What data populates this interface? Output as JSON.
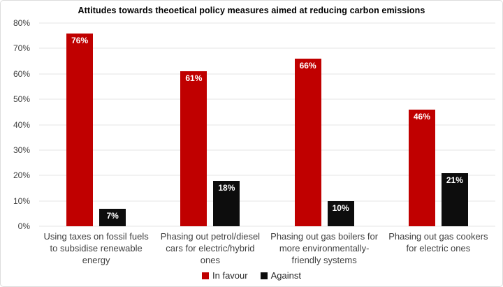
{
  "chart_data": {
    "type": "bar",
    "title": "Attitudes towards theoetical policy measures aimed at reducing carbon emissions",
    "categories": [
      "Using taxes on fossil fuels\nto subsidise renewable\nenergy",
      "Phasing out petrol/diesel\ncars for electric/hybrid\nones",
      "Phasing out gas boilers for\nmore environmentally-\nfriendly systems",
      "Phasing out gas cookers\nfor electric ones"
    ],
    "series": [
      {
        "name": "In favour",
        "color": "#c00000",
        "values": [
          76,
          61,
          66,
          46
        ],
        "value_labels": [
          "76%",
          "61%",
          "66%",
          "46%"
        ]
      },
      {
        "name": "Against",
        "color": "#0d0d0d",
        "values": [
          7,
          18,
          10,
          21
        ],
        "value_labels": [
          "7%",
          "18%",
          "10%",
          "21%"
        ]
      }
    ],
    "xlabel": "",
    "ylabel": "",
    "ylim": [
      0,
      80
    ],
    "ytick_step": 10,
    "ytick_labels": [
      "0%",
      "10%",
      "20%",
      "30%",
      "40%",
      "50%",
      "60%",
      "70%",
      "80%"
    ],
    "grid": true,
    "gridline_color": "#f2f2f2",
    "legend_position": "bottom"
  }
}
